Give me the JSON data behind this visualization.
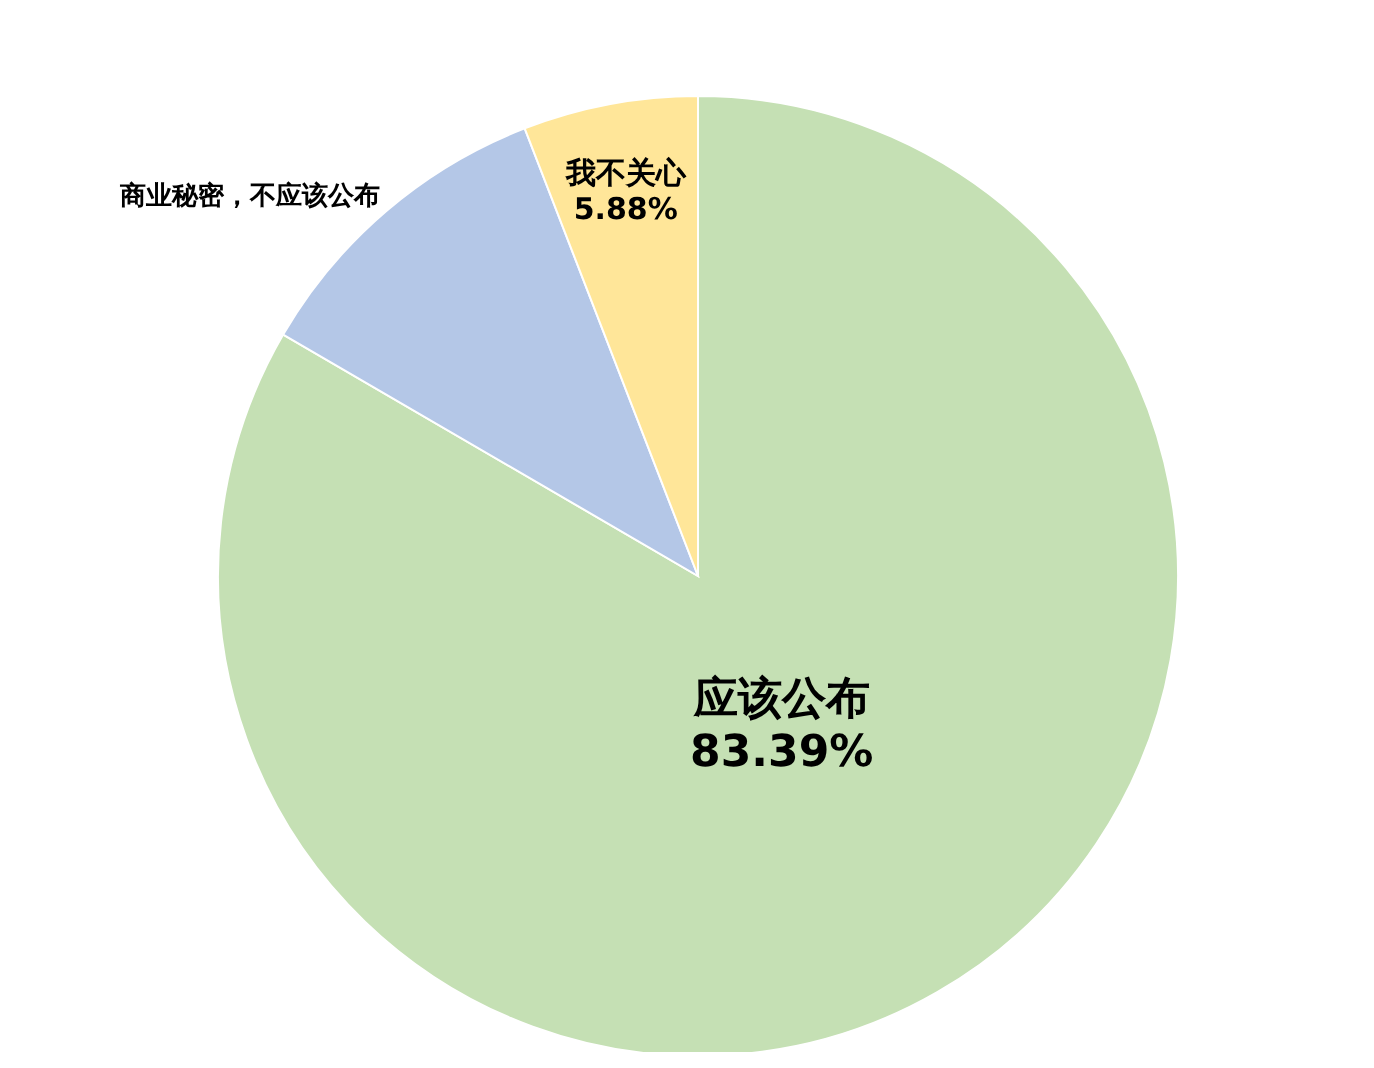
{
  "chart_data": {
    "type": "pie",
    "categories": [
      "应该公布",
      "商业秘密，不应该公布",
      "我不关心"
    ],
    "values": [
      83.39,
      10.73,
      5.88
    ],
    "value_labels": [
      "83.39%",
      null,
      "5.88%"
    ],
    "colors": [
      "#c5e0b4",
      "#b4c7e7",
      "#ffe699"
    ]
  }
}
